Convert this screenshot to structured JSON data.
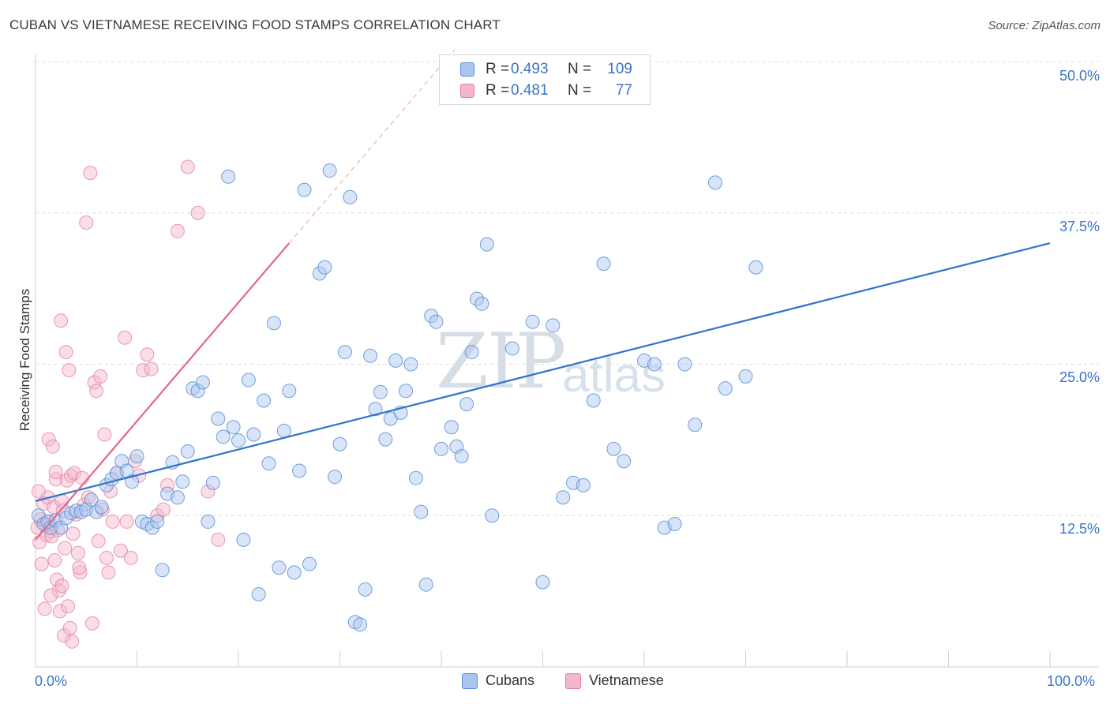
{
  "title": "CUBAN VS VIETNAMESE RECEIVING FOOD STAMPS CORRELATION CHART",
  "source": "Source: ZipAtlas.com",
  "watermark": {
    "main": "ZIP",
    "sub": "atlas"
  },
  "colors": {
    "cubans_fill": "#a9c6f0",
    "cubans_stroke": "#5b8fd6",
    "cubans_line": "#2f74cc",
    "vietnamese_fill": "#f4b6c9",
    "vietnamese_stroke": "#e57fa0",
    "vietnamese_line": "#e0688f",
    "axis_text": "#3a74c9",
    "grid": "#dcdcdc"
  },
  "legend": {
    "cubans": {
      "r_label": "R =",
      "r_value": "0.493",
      "n_label": "N =",
      "n_value": "109"
    },
    "vietnamese": {
      "r_label": "R =",
      "r_value": "0.481",
      "n_label": "N =",
      "n_value": "77"
    }
  },
  "bottom_legend": {
    "cubans": "Cubans",
    "vietnamese": "Vietnamese"
  },
  "axes": {
    "ylabel": "Receiving Food Stamps",
    "x_min_label": "0.0%",
    "x_max_label": "100.0%",
    "y_ticks": [
      "12.5%",
      "25.0%",
      "37.5%",
      "50.0%"
    ]
  },
  "chart_data": {
    "type": "scatter",
    "title": "CUBAN VS VIETNAMESE RECEIVING FOOD STAMPS CORRELATION CHART",
    "xlabel": "",
    "ylabel": "Receiving Food Stamps",
    "xlim": [
      0,
      100
    ],
    "ylim": [
      0,
      50
    ],
    "y_ticks": [
      12.5,
      25,
      37.5,
      50
    ],
    "grid": true,
    "legend_position": "top-center",
    "series": [
      {
        "name": "Cubans",
        "r": 0.493,
        "n": 109,
        "trend": {
          "x": [
            0,
            100
          ],
          "y": [
            13.7,
            35.0
          ]
        },
        "points": [
          [
            0.3,
            12.5
          ],
          [
            0.8,
            11.8
          ],
          [
            1.2,
            12.0
          ],
          [
            1.5,
            11.5
          ],
          [
            2.0,
            12.1
          ],
          [
            2.5,
            11.5
          ],
          [
            3.0,
            12.3
          ],
          [
            3.5,
            12.7
          ],
          [
            4.0,
            12.9
          ],
          [
            4.5,
            12.8
          ],
          [
            5.0,
            13.0
          ],
          [
            5.5,
            13.8
          ],
          [
            6.0,
            12.8
          ],
          [
            6.5,
            13.2
          ],
          [
            7.0,
            15.0
          ],
          [
            7.5,
            15.5
          ],
          [
            8.0,
            16.0
          ],
          [
            8.5,
            17.0
          ],
          [
            9.0,
            16.2
          ],
          [
            9.5,
            15.3
          ],
          [
            10.0,
            17.4
          ],
          [
            10.5,
            12.0
          ],
          [
            11.0,
            11.8
          ],
          [
            11.5,
            11.5
          ],
          [
            12.0,
            12.0
          ],
          [
            12.5,
            8.0
          ],
          [
            13.0,
            14.3
          ],
          [
            13.5,
            16.9
          ],
          [
            14.0,
            14.0
          ],
          [
            14.5,
            15.3
          ],
          [
            15.0,
            17.8
          ],
          [
            15.5,
            23.0
          ],
          [
            16.0,
            22.8
          ],
          [
            16.5,
            23.5
          ],
          [
            17.0,
            12.0
          ],
          [
            17.5,
            15.2
          ],
          [
            18.0,
            20.5
          ],
          [
            18.5,
            19.0
          ],
          [
            19.0,
            40.5
          ],
          [
            19.5,
            19.8
          ],
          [
            20.0,
            18.7
          ],
          [
            20.5,
            10.5
          ],
          [
            21.0,
            23.7
          ],
          [
            21.5,
            19.2
          ],
          [
            22.0,
            6.0
          ],
          [
            22.5,
            22.0
          ],
          [
            23.0,
            16.8
          ],
          [
            23.5,
            28.4
          ],
          [
            24.0,
            8.2
          ],
          [
            24.5,
            19.5
          ],
          [
            25.0,
            22.8
          ],
          [
            25.5,
            7.8
          ],
          [
            26.0,
            16.2
          ],
          [
            26.5,
            39.4
          ],
          [
            27.0,
            8.5
          ],
          [
            28.0,
            32.5
          ],
          [
            28.5,
            33.0
          ],
          [
            29.0,
            41.0
          ],
          [
            29.5,
            15.7
          ],
          [
            30.0,
            18.4
          ],
          [
            30.5,
            26.0
          ],
          [
            31.0,
            38.8
          ],
          [
            31.5,
            3.7
          ],
          [
            32.0,
            3.5
          ],
          [
            32.5,
            6.4
          ],
          [
            33.0,
            25.7
          ],
          [
            33.5,
            21.3
          ],
          [
            34.0,
            22.7
          ],
          [
            34.5,
            18.8
          ],
          [
            35.0,
            20.5
          ],
          [
            35.5,
            25.3
          ],
          [
            36.0,
            21.0
          ],
          [
            36.5,
            22.8
          ],
          [
            37.0,
            25.0
          ],
          [
            37.5,
            15.6
          ],
          [
            38.0,
            12.8
          ],
          [
            38.5,
            6.8
          ],
          [
            39.0,
            29.0
          ],
          [
            39.5,
            28.5
          ],
          [
            40.0,
            18.0
          ],
          [
            41.0,
            19.8
          ],
          [
            41.5,
            18.2
          ],
          [
            42.0,
            17.4
          ],
          [
            42.5,
            21.7
          ],
          [
            43.0,
            26.0
          ],
          [
            43.5,
            30.4
          ],
          [
            44.0,
            30.0
          ],
          [
            44.5,
            34.9
          ],
          [
            45.0,
            12.5
          ],
          [
            47.0,
            26.3
          ],
          [
            49.0,
            28.5
          ],
          [
            50.0,
            7.0
          ],
          [
            51.0,
            28.2
          ],
          [
            52.0,
            14.0
          ],
          [
            53.0,
            15.2
          ],
          [
            54.0,
            15.0
          ],
          [
            55.0,
            22.0
          ],
          [
            56.0,
            33.3
          ],
          [
            57.0,
            18.0
          ],
          [
            58.0,
            17.0
          ],
          [
            60.0,
            25.3
          ],
          [
            61.0,
            25.0
          ],
          [
            62.0,
            11.5
          ],
          [
            63.0,
            11.8
          ],
          [
            64.0,
            25.0
          ],
          [
            65.0,
            20.0
          ],
          [
            67.0,
            40.0
          ],
          [
            68.0,
            23.0
          ],
          [
            70.0,
            24.0
          ],
          [
            71.0,
            33.0
          ]
        ]
      },
      {
        "name": "Vietnamese",
        "r": 0.481,
        "n": 77,
        "trend": {
          "x": [
            0,
            25
          ],
          "y": [
            10.5,
            35.0
          ]
        },
        "points": [
          [
            0.2,
            11.5
          ],
          [
            0.4,
            10.3
          ],
          [
            0.5,
            12.2
          ],
          [
            0.6,
            8.5
          ],
          [
            0.8,
            13.5
          ],
          [
            1.0,
            11.8
          ],
          [
            1.1,
            10.9
          ],
          [
            1.2,
            14.0
          ],
          [
            1.3,
            18.8
          ],
          [
            1.4,
            12.0
          ],
          [
            1.5,
            11.2
          ],
          [
            1.6,
            10.8
          ],
          [
            1.7,
            18.2
          ],
          [
            1.8,
            13.2
          ],
          [
            1.9,
            8.8
          ],
          [
            2.0,
            15.5
          ],
          [
            2.1,
            7.2
          ],
          [
            2.2,
            11.3
          ],
          [
            2.3,
            6.3
          ],
          [
            2.4,
            4.6
          ],
          [
            2.5,
            28.6
          ],
          [
            2.6,
            13.7
          ],
          [
            2.7,
            12.9
          ],
          [
            2.8,
            2.6
          ],
          [
            2.9,
            9.8
          ],
          [
            3.0,
            26.0
          ],
          [
            3.1,
            15.4
          ],
          [
            3.2,
            5.0
          ],
          [
            3.3,
            24.5
          ],
          [
            3.4,
            3.2
          ],
          [
            3.5,
            15.8
          ],
          [
            3.6,
            2.1
          ],
          [
            3.8,
            16.0
          ],
          [
            4.0,
            12.6
          ],
          [
            4.2,
            9.4
          ],
          [
            4.4,
            7.8
          ],
          [
            4.6,
            15.6
          ],
          [
            4.8,
            13.4
          ],
          [
            5.0,
            36.7
          ],
          [
            5.2,
            14.0
          ],
          [
            5.4,
            40.8
          ],
          [
            5.6,
            3.6
          ],
          [
            5.8,
            23.5
          ],
          [
            6.0,
            22.8
          ],
          [
            6.2,
            10.4
          ],
          [
            6.4,
            24.0
          ],
          [
            6.6,
            13.0
          ],
          [
            6.8,
            19.2
          ],
          [
            7.0,
            9.0
          ],
          [
            7.2,
            7.8
          ],
          [
            7.4,
            14.5
          ],
          [
            7.6,
            12.0
          ],
          [
            8.0,
            16.0
          ],
          [
            8.4,
            9.6
          ],
          [
            8.8,
            27.2
          ],
          [
            9.0,
            12.0
          ],
          [
            9.4,
            9.0
          ],
          [
            9.8,
            17.0
          ],
          [
            10.2,
            15.8
          ],
          [
            10.6,
            24.5
          ],
          [
            11.0,
            25.8
          ],
          [
            11.4,
            24.6
          ],
          [
            12.0,
            12.5
          ],
          [
            12.6,
            13.0
          ],
          [
            13.0,
            15.0
          ],
          [
            14.0,
            36.0
          ],
          [
            15.0,
            41.3
          ],
          [
            16.0,
            37.5
          ],
          [
            17.0,
            14.5
          ],
          [
            18.0,
            10.5
          ],
          [
            0.3,
            14.5
          ],
          [
            0.9,
            4.8
          ],
          [
            1.5,
            5.9
          ],
          [
            2.6,
            6.7
          ],
          [
            3.7,
            11.0
          ],
          [
            4.3,
            8.2
          ],
          [
            2.0,
            16.1
          ]
        ]
      }
    ]
  }
}
